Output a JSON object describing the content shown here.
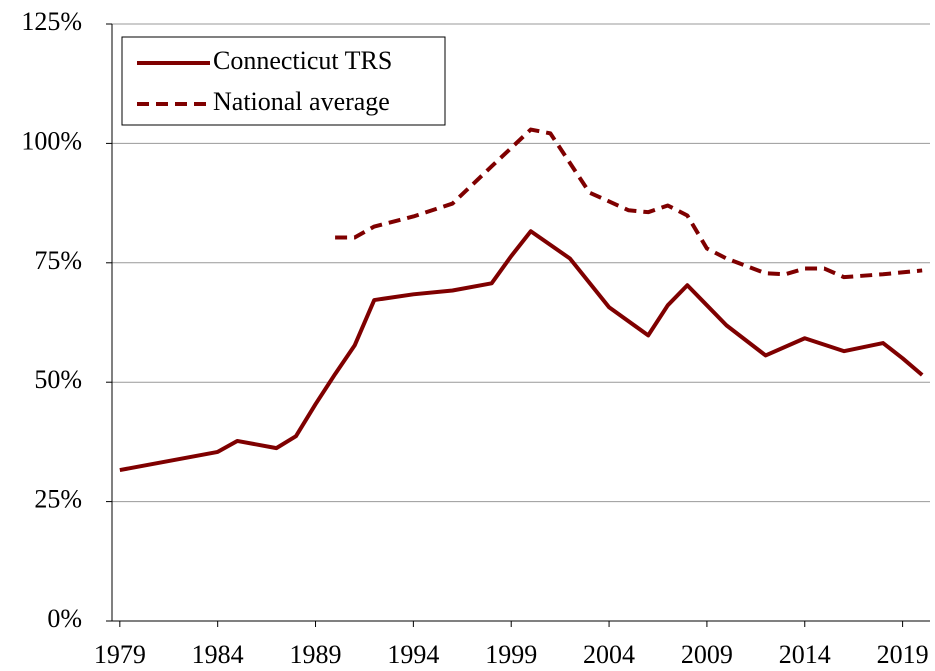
{
  "chart_data": {
    "type": "line",
    "series": [
      {
        "name": "Connecticut TRS",
        "color": "#7f0000",
        "style": "solid",
        "x": [
          1979,
          1984,
          1985,
          1987,
          1988,
          1989,
          1990,
          1991,
          1992,
          1994,
          1996,
          1998,
          1999,
          2000,
          2002,
          2004,
          2006,
          2007,
          2008,
          2009,
          2010,
          2012,
          2014,
          2016,
          2018,
          2019,
          2020
        ],
        "values": [
          31.6,
          35.4,
          37.7,
          36.2,
          38.7,
          45.4,
          51.7,
          57.7,
          67.2,
          68.4,
          69.2,
          70.7,
          76.4,
          81.6,
          75.9,
          65.7,
          59.8,
          66.1,
          70.3,
          66.1,
          61.9,
          55.6,
          59.2,
          56.5,
          58.2,
          55,
          51.5
        ]
      },
      {
        "name": "National average",
        "color": "#7f0000",
        "style": "dashed",
        "x": [
          1990,
          1991,
          1992,
          1994,
          1996,
          1998,
          2000,
          2001,
          2003,
          2005,
          2006,
          2007,
          2008,
          2009,
          2010,
          2012,
          2013,
          2014,
          2015,
          2016,
          2018,
          2020
        ],
        "values": [
          80.3,
          80.3,
          82.6,
          84.7,
          87.4,
          95.2,
          102.9,
          102.1,
          89.7,
          86,
          85.6,
          87,
          84.9,
          78,
          75.9,
          72.8,
          72.6,
          73.8,
          73.8,
          72,
          72.6,
          73.4
        ]
      }
    ],
    "xlim": [
      1978.6,
      2020.4
    ],
    "xticks": [
      1979,
      1984,
      1989,
      1994,
      1999,
      2004,
      2009,
      2014,
      2019
    ],
    "ylim": [
      0,
      125
    ],
    "yticks": [
      {
        "value": 0,
        "label": "0%"
      },
      {
        "value": 25,
        "label": "25%"
      },
      {
        "value": 50,
        "label": "50%"
      },
      {
        "value": 75,
        "label": "75%"
      },
      {
        "value": 100,
        "label": "100%"
      },
      {
        "value": 125,
        "label": "125%"
      }
    ],
    "grid": true,
    "legend": "top-left"
  }
}
